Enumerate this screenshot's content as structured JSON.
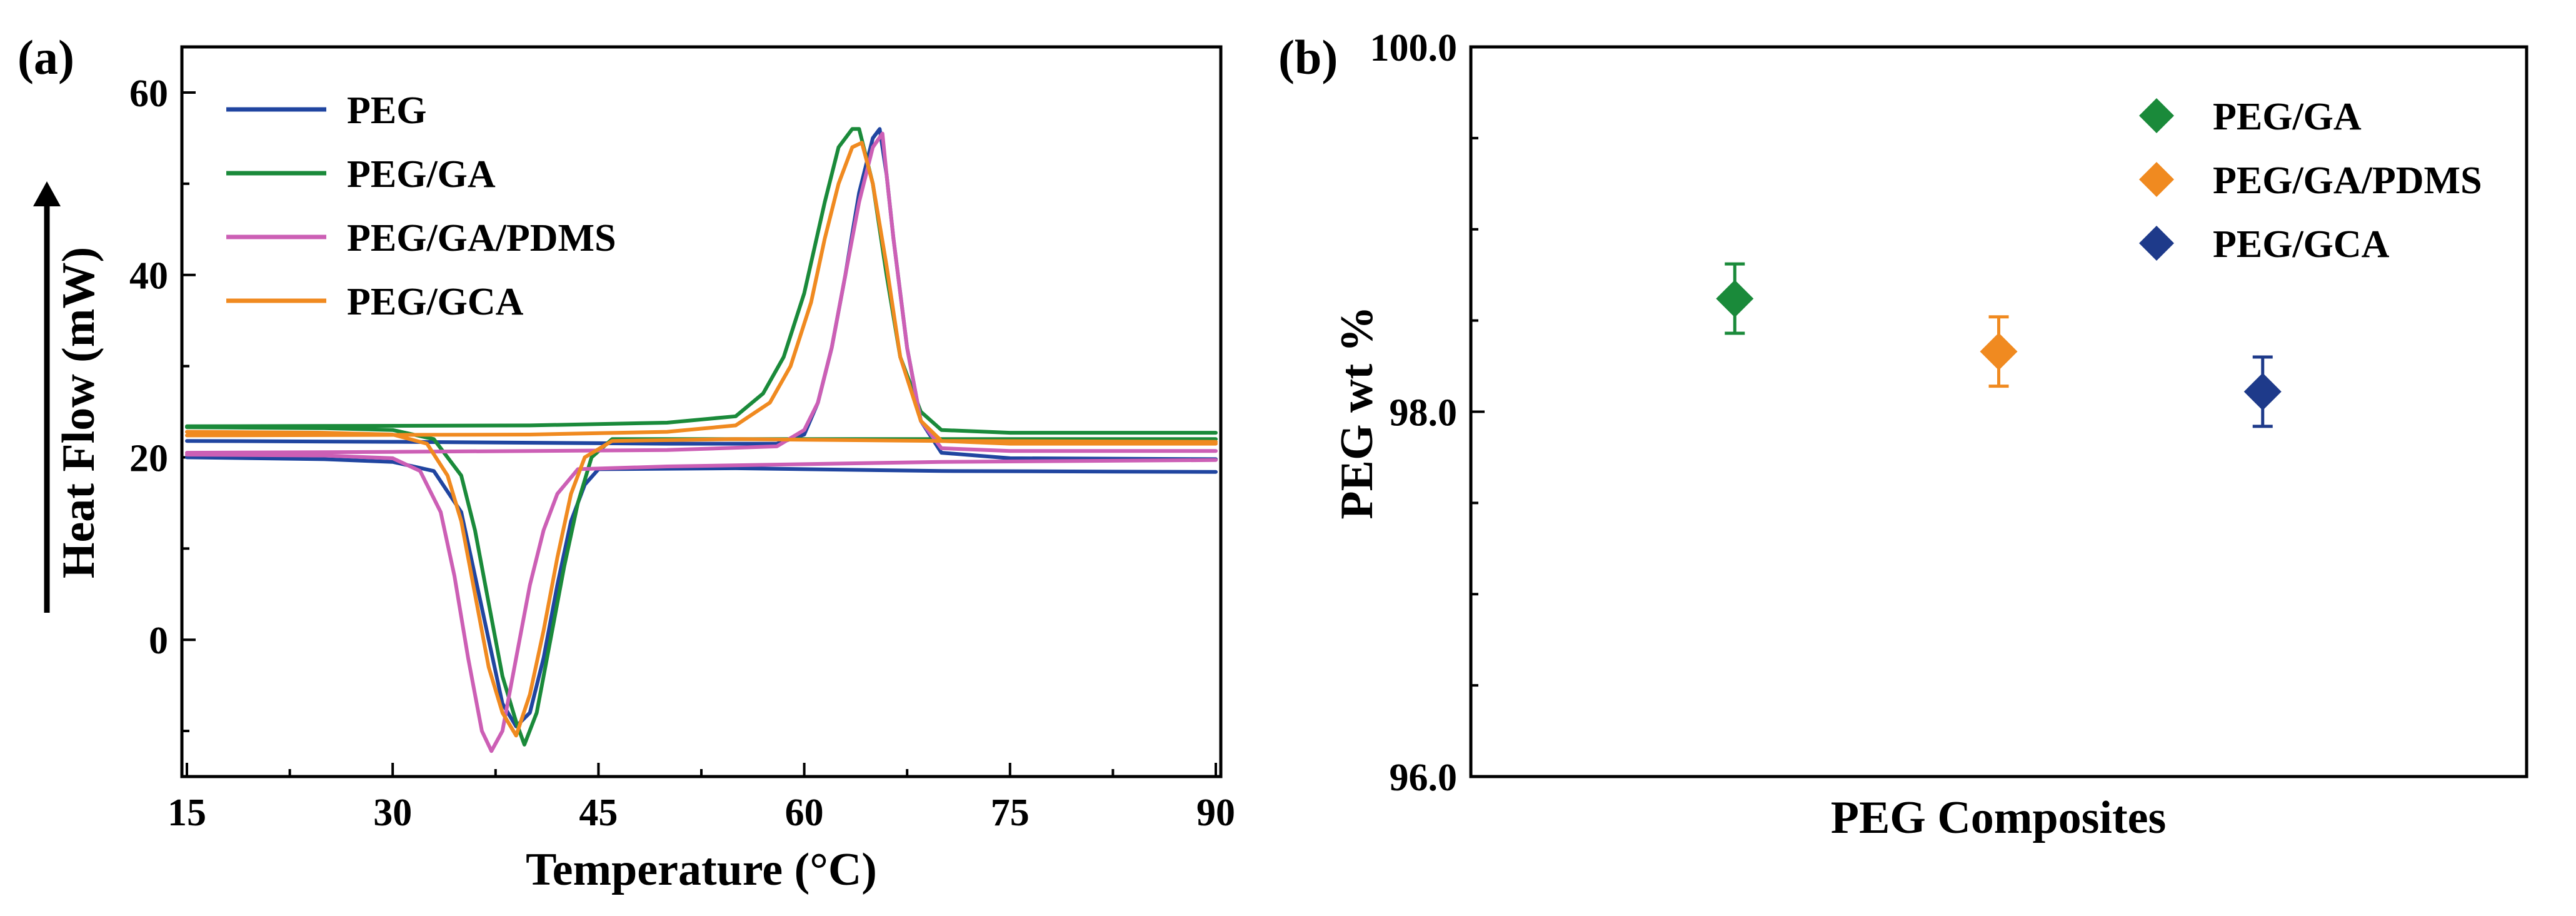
{
  "chart_data": [
    {
      "type": "line",
      "panel_label": "(a)",
      "xlabel": "Temperature (°C)",
      "ylabel": "Heat Flow (mW)",
      "xlim": [
        15,
        90
      ],
      "ylim": [
        -15,
        65
      ],
      "xticks": [
        15,
        30,
        45,
        60,
        75,
        90
      ],
      "yticks": [
        0,
        20,
        40,
        60
      ],
      "legend_position": "top-left",
      "series": [
        {
          "name": "PEG",
          "color": "#2045a0",
          "heating": [
            [
              15,
              20
            ],
            [
              25,
              19.8
            ],
            [
              30,
              19.5
            ],
            [
              33,
              18.5
            ],
            [
              35,
              14
            ],
            [
              36,
              7
            ],
            [
              37,
              0
            ],
            [
              38,
              -7
            ],
            [
              39,
              -9.5
            ],
            [
              40,
              -8
            ],
            [
              41,
              -2
            ],
            [
              42,
              6
            ],
            [
              43,
              13
            ],
            [
              44,
              17
            ],
            [
              45,
              18.7
            ],
            [
              55,
              18.8
            ],
            [
              70,
              18.5
            ],
            [
              90,
              18.4
            ]
          ],
          "cooling": [
            [
              90,
              19.8
            ],
            [
              75,
              19.9
            ],
            [
              70,
              20.5
            ],
            [
              68.5,
              24
            ],
            [
              67.5,
              32
            ],
            [
              66.5,
              44
            ],
            [
              66,
              51
            ],
            [
              65.5,
              56
            ],
            [
              65,
              55
            ],
            [
              64,
              49
            ],
            [
              63,
              40
            ],
            [
              62,
              32
            ],
            [
              61,
              26
            ],
            [
              60,
              22.5
            ],
            [
              58,
              21.5
            ],
            [
              50,
              21.5
            ],
            [
              30,
              21.7
            ],
            [
              15,
              21.8
            ]
          ]
        },
        {
          "name": "PEG/GA",
          "color": "#1a8a3a",
          "heating": [
            [
              15,
              23.3
            ],
            [
              25,
              23.2
            ],
            [
              30,
              23
            ],
            [
              33,
              22
            ],
            [
              35,
              18
            ],
            [
              36,
              12
            ],
            [
              37,
              4
            ],
            [
              38,
              -4
            ],
            [
              39,
              -9
            ],
            [
              39.6,
              -11.5
            ],
            [
              40.5,
              -8
            ],
            [
              41.5,
              0
            ],
            [
              42.5,
              8
            ],
            [
              43.5,
              15
            ],
            [
              44.5,
              20
            ],
            [
              46,
              22
            ],
            [
              55,
              22
            ],
            [
              70,
              22
            ],
            [
              90,
              22
            ]
          ],
          "cooling": [
            [
              90,
              22.7
            ],
            [
              75,
              22.7
            ],
            [
              70,
              23
            ],
            [
              68.5,
              25
            ],
            [
              67,
              31
            ],
            [
              66,
              40
            ],
            [
              65,
              50
            ],
            [
              64,
              56
            ],
            [
              63.5,
              56
            ],
            [
              62.5,
              54
            ],
            [
              61.5,
              48
            ],
            [
              60,
              38
            ],
            [
              58.5,
              31
            ],
            [
              57,
              27
            ],
            [
              55,
              24.5
            ],
            [
              50,
              23.8
            ],
            [
              40,
              23.5
            ],
            [
              15,
              23.4
            ]
          ]
        },
        {
          "name": "PEG/GA/PDMS",
          "color": "#cc5fb5",
          "heating": [
            [
              15,
              20.3
            ],
            [
              25,
              20.2
            ],
            [
              30,
              19.9
            ],
            [
              32,
              18.5
            ],
            [
              33.5,
              14
            ],
            [
              34.5,
              7
            ],
            [
              35.5,
              -2
            ],
            [
              36.5,
              -10
            ],
            [
              37.2,
              -12.2
            ],
            [
              38,
              -10
            ],
            [
              39,
              -2
            ],
            [
              40,
              6
            ],
            [
              41,
              12
            ],
            [
              42,
              16
            ],
            [
              43.5,
              18.7
            ],
            [
              50,
              19
            ],
            [
              70,
              19.5
            ],
            [
              90,
              19.7
            ]
          ],
          "cooling": [
            [
              90,
              20.7
            ],
            [
              75,
              20.7
            ],
            [
              70,
              21
            ],
            [
              68.5,
              24
            ],
            [
              67.5,
              32
            ],
            [
              66.5,
              44
            ],
            [
              66,
              51
            ],
            [
              65.7,
              55.5
            ],
            [
              65,
              54
            ],
            [
              64,
              48
            ],
            [
              63,
              40
            ],
            [
              62,
              32
            ],
            [
              61,
              26
            ],
            [
              60,
              23
            ],
            [
              58,
              21.2
            ],
            [
              50,
              20.8
            ],
            [
              30,
              20.6
            ],
            [
              15,
              20.5
            ]
          ]
        },
        {
          "name": "PEG/GCA",
          "color": "#f08a20",
          "heating": [
            [
              15,
              22.8
            ],
            [
              25,
              22.7
            ],
            [
              30,
              22.5
            ],
            [
              32.5,
              21.5
            ],
            [
              34,
              18
            ],
            [
              35,
              13
            ],
            [
              36,
              5
            ],
            [
              37,
              -3
            ],
            [
              38,
              -8
            ],
            [
              39,
              -10.5
            ],
            [
              40,
              -6
            ],
            [
              41,
              1
            ],
            [
              42,
              9
            ],
            [
              43,
              16
            ],
            [
              44,
              20
            ],
            [
              46,
              21.8
            ],
            [
              55,
              22
            ],
            [
              70,
              21.8
            ],
            [
              90,
              21.7
            ]
          ],
          "cooling": [
            [
              90,
              21.5
            ],
            [
              75,
              21.5
            ],
            [
              70,
              21.8
            ],
            [
              68.5,
              24
            ],
            [
              67,
              31
            ],
            [
              66,
              41
            ],
            [
              65,
              50
            ],
            [
              64.2,
              54.5
            ],
            [
              63.5,
              54
            ],
            [
              62.5,
              50
            ],
            [
              61.5,
              44
            ],
            [
              60.5,
              37
            ],
            [
              59,
              30
            ],
            [
              57.5,
              26
            ],
            [
              55,
              23.5
            ],
            [
              50,
              22.8
            ],
            [
              40,
              22.5
            ],
            [
              15,
              22.4
            ]
          ]
        }
      ]
    },
    {
      "type": "scatter",
      "panel_label": "(b)",
      "xlabel": "PEG Composites",
      "ylabel": "PEG wt %",
      "ylim": [
        96.0,
        100.0
      ],
      "yticks": [
        "96.0",
        "98.0",
        "100.0"
      ],
      "legend_position": "top-right",
      "marker": "diamond",
      "series": [
        {
          "name": "PEG/GA",
          "color": "#1a8a3a",
          "value": 98.62,
          "error": 0.19
        },
        {
          "name": "PEG/GA/PDMS",
          "color": "#f08a20",
          "value": 98.33,
          "error": 0.19
        },
        {
          "name": "PEG/GCA",
          "color": "#1e3a8a",
          "value": 98.11,
          "error": 0.19
        }
      ]
    }
  ]
}
